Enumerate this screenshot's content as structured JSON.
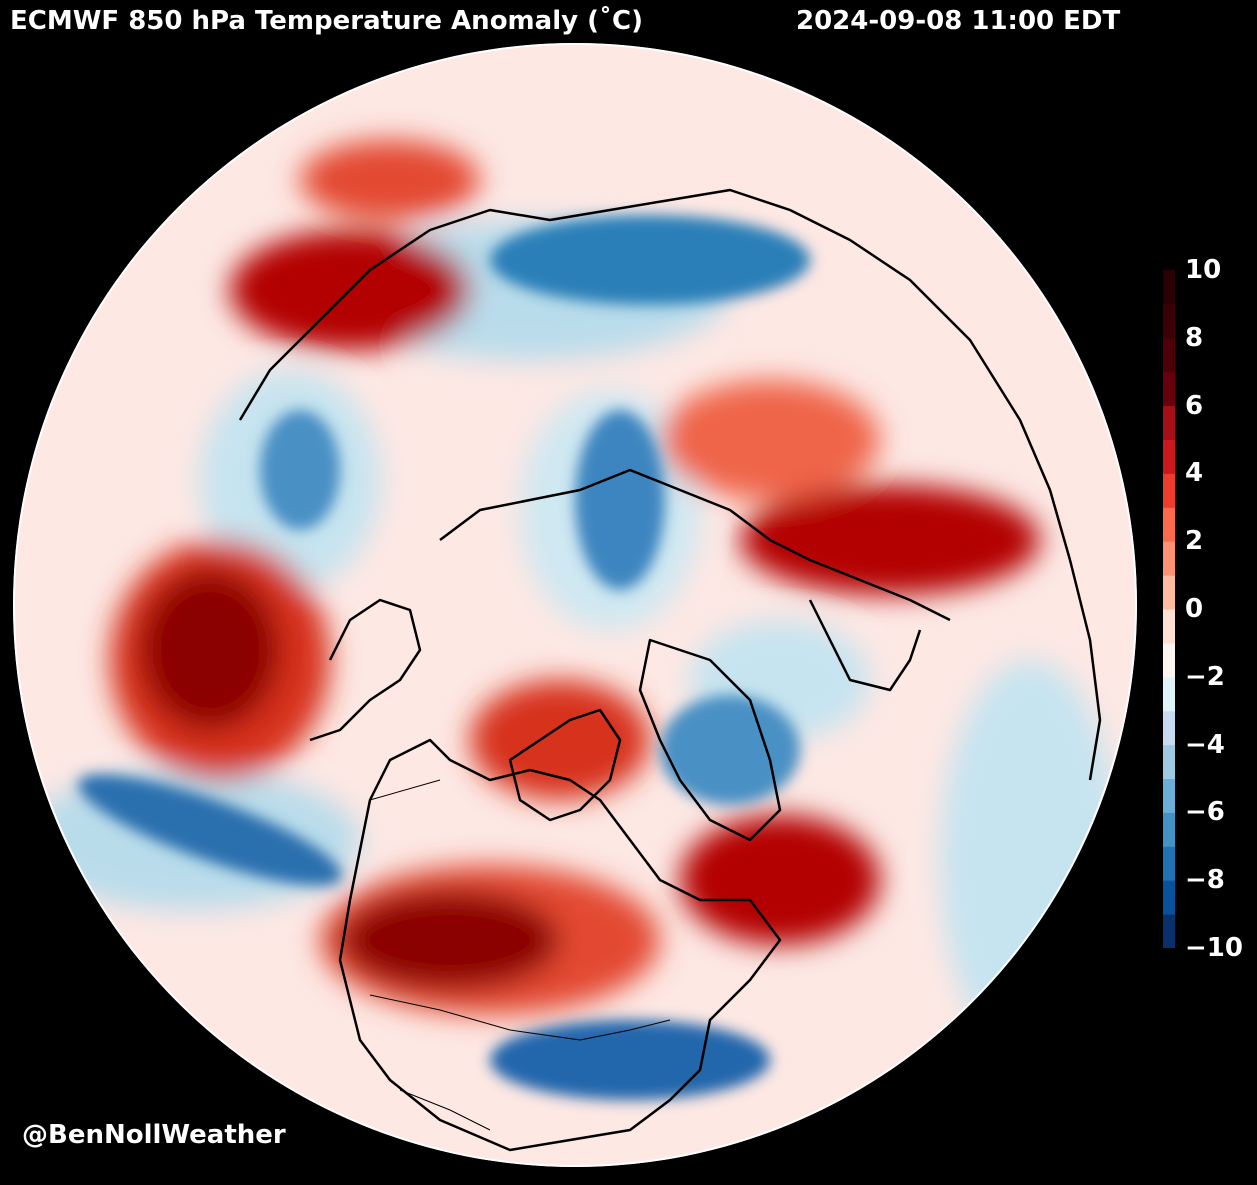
{
  "header": {
    "title": "ECMWF 850 hPa Temperature Anomaly (˚C)",
    "datetime": "2024-09-08 11:00 EDT"
  },
  "footer": {
    "credit": "@BenNollWeather"
  },
  "colorbar": {
    "ticks": [
      "10",
      "8",
      "6",
      "4",
      "2",
      "0",
      "−2",
      "−4",
      "−6",
      "−8",
      "−10"
    ],
    "range": [
      -10,
      10
    ],
    "colors": [
      "#08306b",
      "#08519c",
      "#2171b5",
      "#4292c6",
      "#6baed6",
      "#9ecae1",
      "#c6dbef",
      "#e0f3f8",
      "#fff5f0",
      "#fee0d2",
      "#fcbba1",
      "#fc9272",
      "#fb6a4a",
      "#ef3b2c",
      "#cb181d",
      "#a50f15",
      "#67000d",
      "#4d0008",
      "#3b0006",
      "#2a0004"
    ]
  },
  "map": {
    "projection": "orthographic, North Pole centered",
    "features": [
      "warm-anomaly-western-canada",
      "warm-anomaly-greenland-sea",
      "warm-anomaly-north-pacific",
      "warm-anomaly-central-asia",
      "warm-anomaly-eastern-europe",
      "cold-anomaly-eastern-us",
      "cold-anomaly-siberia",
      "cold-anomaly-greenland",
      "cold-anomaly-kara-sea",
      "cold-anomaly-north-pacific-band"
    ]
  }
}
